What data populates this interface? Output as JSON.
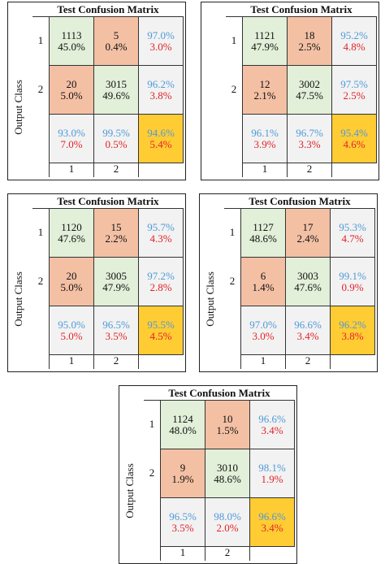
{
  "colors": {
    "correct": "#e2efd9",
    "incorrect": "#f4c0a4",
    "summary": "#f2f2f2",
    "total": "#ffcc33",
    "blue_text": "#4f9ad8",
    "red_text": "#e2232a",
    "dark_text": "#111111"
  },
  "ylabel": "Output Class",
  "chart_data": [
    {
      "type": "table",
      "title": "Test Confusion Matrix",
      "ylabel": "Output Class",
      "row_labels": [
        "1",
        "2"
      ],
      "col_labels": [
        "1",
        "2"
      ],
      "cells": [
        [
          {
            "count": "1113",
            "pct": "45.0%"
          },
          {
            "count": "5",
            "pct": "0.4%"
          },
          {
            "pos": "97.0%",
            "neg": "3.0%"
          }
        ],
        [
          {
            "count": "20",
            "pct": "5.0%"
          },
          {
            "count": "3015",
            "pct": "49.6%"
          },
          {
            "pos": "96.2%",
            "neg": "3.8%"
          }
        ],
        [
          {
            "pos": "93.0%",
            "neg": "7.0%"
          },
          {
            "pos": "99.5%",
            "neg": "0.5%"
          },
          {
            "pos": "94.6%",
            "neg": "5.4%"
          }
        ]
      ]
    },
    {
      "type": "table",
      "title": "Test Confusion Matrix",
      "ylabel": "",
      "row_labels": [
        "1",
        "2"
      ],
      "col_labels": [
        "1",
        "2"
      ],
      "cells": [
        [
          {
            "count": "1121",
            "pct": "47.9%"
          },
          {
            "count": "18",
            "pct": "2.5%"
          },
          {
            "pos": "95.2%",
            "neg": "4.8%"
          }
        ],
        [
          {
            "count": "12",
            "pct": "2.1%"
          },
          {
            "count": "3002",
            "pct": "47.5%"
          },
          {
            "pos": "97.5%",
            "neg": "2.5%"
          }
        ],
        [
          {
            "pos": "96.1%",
            "neg": "3.9%"
          },
          {
            "pos": "96.7%",
            "neg": "3.3%"
          },
          {
            "pos": "95.4%",
            "neg": "4.6%"
          }
        ]
      ]
    },
    {
      "type": "table",
      "title": "Test Confusion Matrix",
      "ylabel": "Output Class",
      "row_labels": [
        "1",
        "2"
      ],
      "col_labels": [
        "1",
        "2"
      ],
      "cells": [
        [
          {
            "count": "1120",
            "pct": "47.6%"
          },
          {
            "count": "15",
            "pct": "2.2%"
          },
          {
            "pos": "95.7%",
            "neg": "4.3%"
          }
        ],
        [
          {
            "count": "20",
            "pct": "5.0%"
          },
          {
            "count": "3005",
            "pct": "47.9%"
          },
          {
            "pos": "97.2%",
            "neg": "2.8%"
          }
        ],
        [
          {
            "pos": "95.0%",
            "neg": "5.0%"
          },
          {
            "pos": "96.5%",
            "neg": "3.5%"
          },
          {
            "pos": "95.5%",
            "neg": "4.5%"
          }
        ]
      ]
    },
    {
      "type": "table",
      "title": "Test Confusion Matrix",
      "ylabel": "Output Class",
      "row_labels": [
        "1",
        "2"
      ],
      "col_labels": [
        "1",
        "2"
      ],
      "cells": [
        [
          {
            "count": "1127",
            "pct": "48.6%"
          },
          {
            "count": "17",
            "pct": "2.4%"
          },
          {
            "pos": "95.3%",
            "neg": "4.7%"
          }
        ],
        [
          {
            "count": "6",
            "pct": "1.4%"
          },
          {
            "count": "3003",
            "pct": "47.6%"
          },
          {
            "pos": "99.1%",
            "neg": "0.9%"
          }
        ],
        [
          {
            "pos": "97.0%",
            "neg": "3.0%"
          },
          {
            "pos": "96.6%",
            "neg": "3.4%"
          },
          {
            "pos": "96.2%",
            "neg": "3.8%"
          }
        ]
      ]
    },
    {
      "type": "table",
      "title": "Test Confusion Matrix",
      "ylabel": "Output Class",
      "row_labels": [
        "1",
        "2"
      ],
      "col_labels": [
        "1",
        "2"
      ],
      "cells": [
        [
          {
            "count": "1124",
            "pct": "48.0%"
          },
          {
            "count": "10",
            "pct": "1.5%"
          },
          {
            "pos": "96.6%",
            "neg": "3.4%"
          }
        ],
        [
          {
            "count": "9",
            "pct": "1.9%"
          },
          {
            "count": "3010",
            "pct": "48.6%"
          },
          {
            "pos": "98.1%",
            "neg": "1.9%"
          }
        ],
        [
          {
            "pos": "96.5%",
            "neg": "3.5%"
          },
          {
            "pos": "98.0%",
            "neg": "2.0%"
          },
          {
            "pos": "96.6%",
            "neg": "3.4%"
          }
        ]
      ]
    }
  ]
}
